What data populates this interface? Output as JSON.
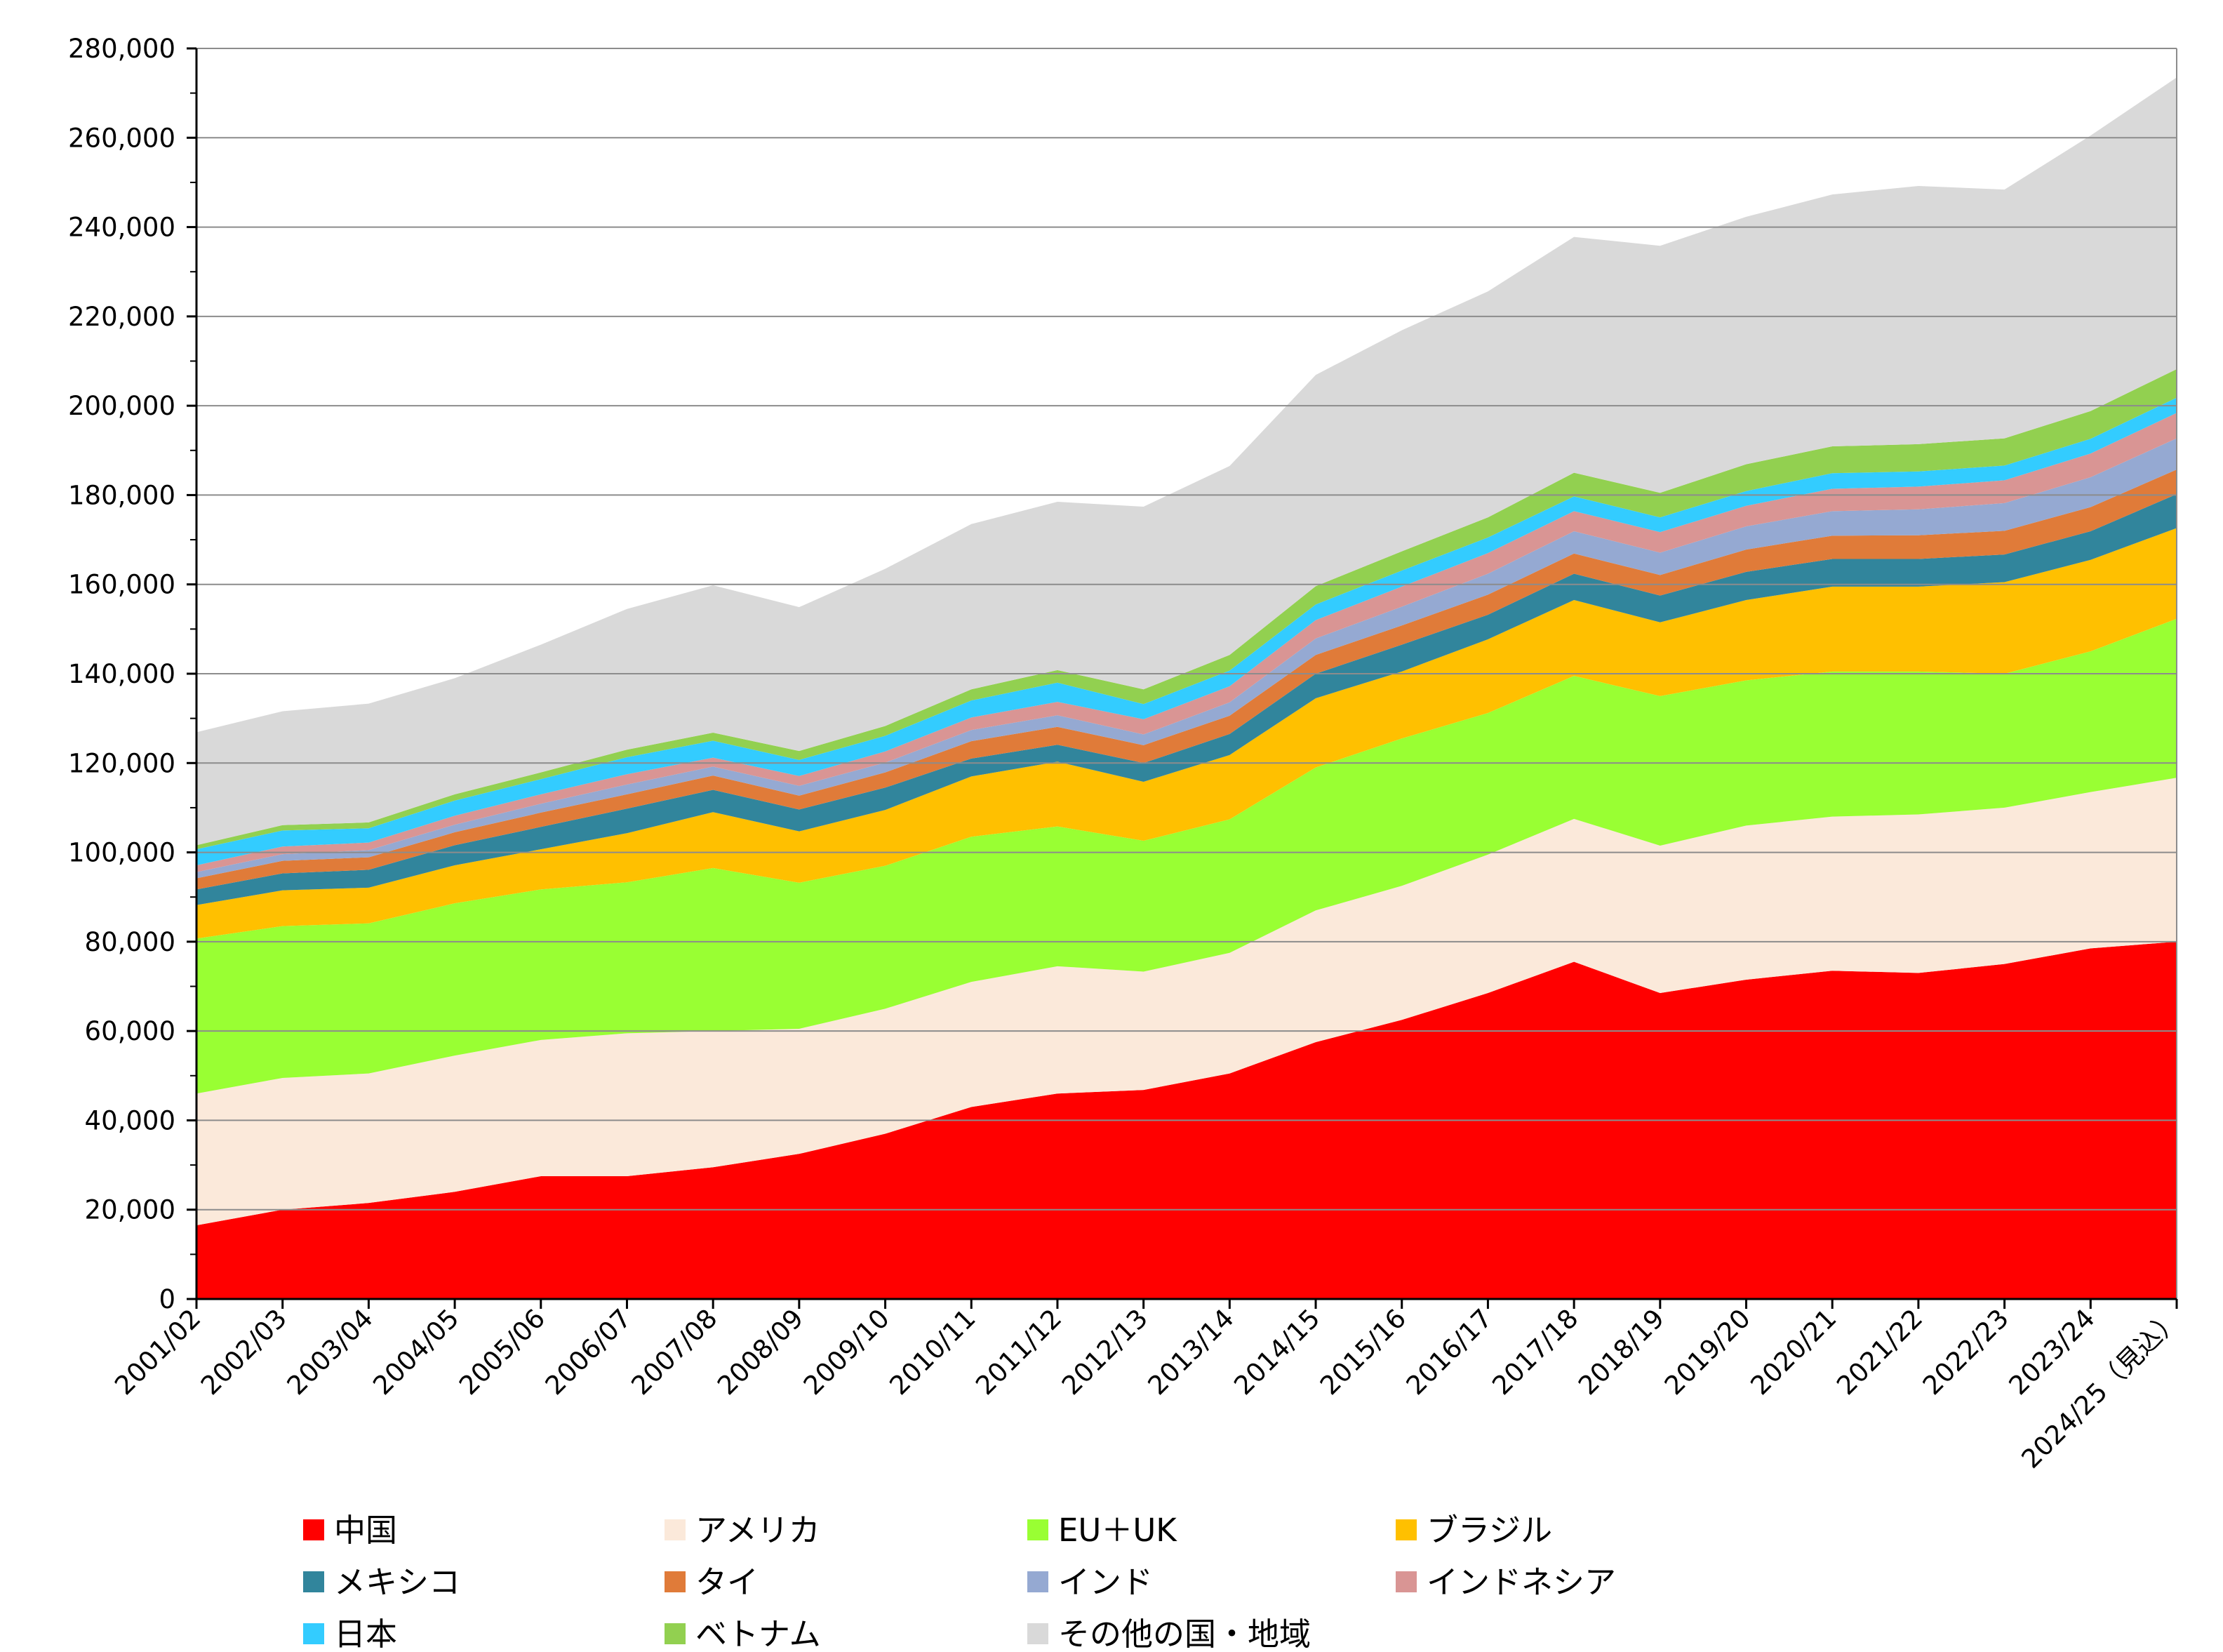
{
  "chart_data": {
    "type": "area",
    "stacked": true,
    "title": "",
    "xlabel": "",
    "ylabel": "",
    "ylim": [
      0,
      280000
    ],
    "y_ticks": [
      "0",
      "20,000",
      "40,000",
      "60,000",
      "80,000",
      "100,000",
      "120,000",
      "140,000",
      "160,000",
      "180,000",
      "200,000",
      "220,000",
      "240,000",
      "260,000",
      "280,000"
    ],
    "grid": "horizontal",
    "legend_position": "bottom",
    "categories": [
      "2001/02",
      "2002/03",
      "2003/04",
      "2004/05",
      "2005/06",
      "2006/07",
      "2007/08",
      "2008/09",
      "2009/10",
      "2010/11",
      "2011/12",
      "2012/13",
      "2013/14",
      "2014/15",
      "2015/16",
      "2016/17",
      "2017/18",
      "2018/19",
      "2019/20",
      "2020/21",
      "2021/22",
      "2022/23",
      "2023/24",
      "2024/25（見込）"
    ],
    "series": [
      {
        "name": "中国",
        "color": "#FF0000",
        "values": [
          16500,
          20000,
          21500,
          24000,
          27500,
          27500,
          29500,
          32500,
          37000,
          43000,
          46000,
          46800,
          50500,
          57500,
          62500,
          68500,
          75500,
          68500,
          71500,
          73500,
          73000,
          75000,
          78500,
          80000
        ]
      },
      {
        "name": "アメリカ",
        "color": "#FBE9DA",
        "values": [
          29500,
          29500,
          29000,
          30500,
          30500,
          32000,
          30500,
          28000,
          28000,
          28000,
          28500,
          26500,
          27000,
          29500,
          30000,
          31000,
          32000,
          33000,
          34500,
          34500,
          35500,
          35000,
          35000,
          36700
        ]
      },
      {
        "name": "EU＋UK",
        "color": "#99FF33",
        "values": [
          34700,
          34000,
          33600,
          34100,
          33700,
          33800,
          36500,
          32700,
          32000,
          32500,
          31300,
          29300,
          29900,
          32000,
          33000,
          31700,
          32000,
          33500,
          32500,
          32500,
          32000,
          30000,
          31500,
          35600
        ]
      },
      {
        "name": "ブラジル",
        "color": "#FFC000",
        "values": [
          7500,
          8000,
          8000,
          8500,
          9000,
          11000,
          12500,
          11500,
          12500,
          13500,
          14500,
          13200,
          14400,
          15500,
          15000,
          16500,
          17000,
          16500,
          18000,
          19000,
          19000,
          20500,
          20500,
          20300
        ]
      },
      {
        "name": "メキシコ",
        "color": "#31859C",
        "values": [
          3500,
          3800,
          4000,
          4500,
          5000,
          5500,
          5000,
          4900,
          5000,
          4000,
          3800,
          4200,
          4700,
          5500,
          6000,
          5500,
          5900,
          6000,
          6300,
          6200,
          6200,
          6200,
          6400,
          7600
        ]
      },
      {
        "name": "タイ",
        "color": "#E07B39",
        "values": [
          2500,
          2800,
          2800,
          2900,
          3200,
          3200,
          3200,
          3100,
          3400,
          3900,
          4000,
          4000,
          4100,
          4200,
          4300,
          4500,
          4500,
          4600,
          5000,
          5200,
          5300,
          5300,
          5400,
          5500
        ]
      },
      {
        "name": "インド",
        "color": "#95A9D2",
        "values": [
          1400,
          1500,
          1600,
          1700,
          2000,
          2200,
          2000,
          2200,
          2200,
          2500,
          2600,
          2400,
          3000,
          3700,
          4200,
          4700,
          5000,
          5000,
          5200,
          5500,
          5800,
          6200,
          6700,
          7000
        ]
      },
      {
        "name": "インドネシア",
        "color": "#D99594",
        "values": [
          1500,
          1700,
          1700,
          2000,
          2100,
          2300,
          2000,
          2200,
          2500,
          2800,
          3000,
          3400,
          3600,
          4100,
          4500,
          4600,
          4500,
          4600,
          4600,
          5000,
          5100,
          5100,
          5300,
          5700
        ]
      },
      {
        "name": "日本",
        "color": "#33CCFF",
        "values": [
          3600,
          3600,
          3200,
          3400,
          3400,
          3800,
          3800,
          3600,
          3500,
          3800,
          4300,
          3400,
          3500,
          3500,
          3600,
          3500,
          3300,
          3300,
          3300,
          3500,
          3400,
          3300,
          3300,
          3400
        ]
      },
      {
        "name": "ベトナム",
        "color": "#92D050",
        "values": [
          900,
          1200,
          1300,
          1400,
          1500,
          1700,
          1800,
          2000,
          2200,
          2500,
          2800,
          3300,
          3500,
          4100,
          4300,
          4500,
          5300,
          5500,
          6000,
          6000,
          6100,
          6100,
          6200,
          6400
        ]
      },
      {
        "name": "その他の国・地域",
        "color": "#D9D9D9",
        "values": [
          25300,
          25500,
          26600,
          26000,
          28600,
          31500,
          33000,
          32200,
          35200,
          37000,
          37700,
          40900,
          42300,
          47300,
          49500,
          50600,
          52800,
          55300,
          55400,
          56400,
          57800,
          55700,
          61700,
          65300
        ]
      }
    ]
  }
}
